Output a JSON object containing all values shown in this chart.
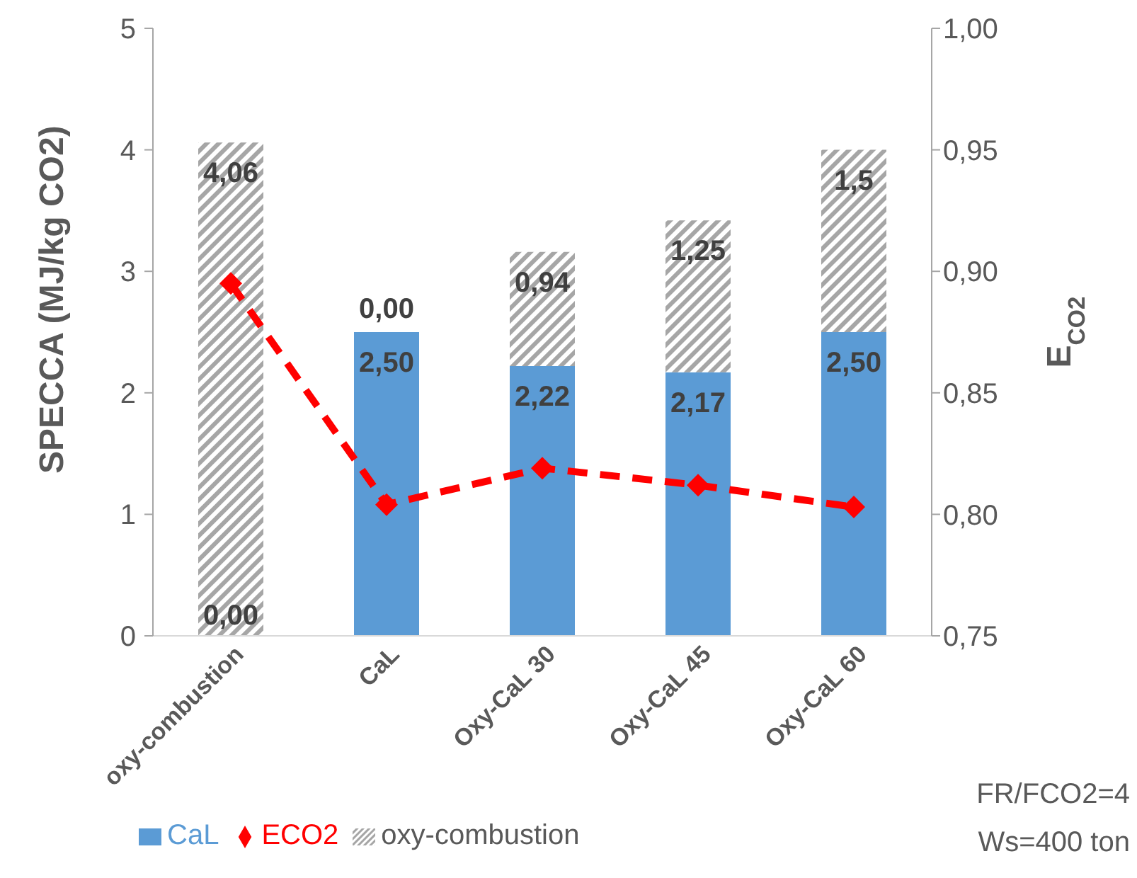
{
  "chart_data": {
    "type": "bar",
    "stacked": true,
    "ylabel": "SPECCA (MJ/kg CO2)",
    "y2label": "E$_{CO2}$",
    "categories": [
      "oxy-combustion",
      "CaL",
      "Oxy-CaL 30",
      "Oxy-CaL 45",
      "Oxy-CaL 60"
    ],
    "series": [
      {
        "name": "CaL",
        "color": "#5b9bd5",
        "values": [
          0,
          2.5,
          2.22,
          2.17,
          2.5
        ],
        "value_labels": [
          "0,00",
          "2,50",
          "2,22",
          "2,17",
          "2,50"
        ]
      },
      {
        "name": "oxy-combustion",
        "color": "#a6a6a6",
        "values": [
          4.06,
          0,
          0.94,
          1.25,
          1.5
        ],
        "value_labels": [
          "4,06",
          "0,00",
          "0,94",
          "1,25",
          "1,5"
        ]
      },
      {
        "name": "ECO2",
        "type": "line",
        "axis": "y2",
        "color": "#ff0000",
        "marker": "diamond",
        "line_style": "dashed",
        "values": [
          0.895,
          0.804,
          0.819,
          0.812,
          0.803
        ]
      }
    ],
    "ylim": [
      0,
      5
    ],
    "yticks": [
      0,
      1,
      2,
      3,
      4,
      5
    ],
    "y2lim": [
      0.75,
      1.0
    ],
    "y2ticks": [
      {
        "value": 0.75,
        "label": "0,75"
      },
      {
        "value": 0.8,
        "label": "0,80"
      },
      {
        "value": 0.85,
        "label": "0,85"
      },
      {
        "value": 0.9,
        "label": "0,90"
      },
      {
        "value": 0.95,
        "label": "0,95"
      },
      {
        "value": 1.0,
        "label": "1,00"
      }
    ],
    "grid": false,
    "legend": "bottom",
    "annotations": [
      "FR/FCO2=4",
      "Ws=400 ton"
    ]
  }
}
